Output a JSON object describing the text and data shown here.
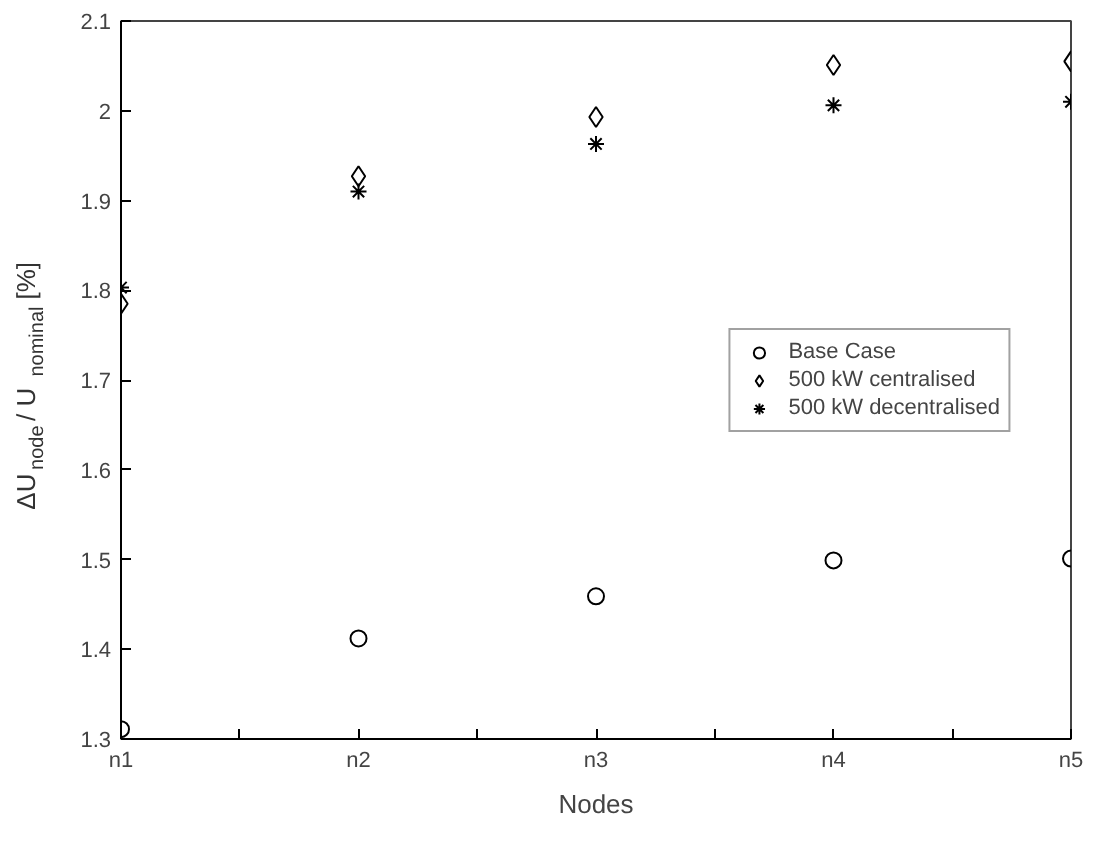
{
  "chart_data": {
    "type": "scatter",
    "xlabel": "Nodes",
    "ylabel": "ΔU$_{node}$ / U$_{nominal}$ [%]",
    "categories": [
      "n1",
      "n2",
      "n3",
      "n4",
      "n5"
    ],
    "ylim": [
      1.3,
      2.1
    ],
    "yticks": [
      1.3,
      1.4,
      1.5,
      1.6,
      1.7,
      1.8,
      1.9,
      2,
      2.1
    ],
    "grid": false,
    "legend": "right",
    "series": [
      {
        "name": "Base Case",
        "color": "#000000",
        "marker": "circle",
        "values": [
          1.311,
          1.412,
          1.459,
          1.499,
          1.501
        ]
      },
      {
        "name": "500 kW centralised",
        "color": "#000000",
        "marker": "diamond",
        "values": [
          1.785,
          1.927,
          1.993,
          2.051,
          2.055
        ]
      },
      {
        "name": "500 kW decentralised",
        "color": "#000000",
        "marker": "cross",
        "values": [
          1.803,
          1.91,
          1.963,
          2.006,
          2.01
        ]
      }
    ]
  }
}
